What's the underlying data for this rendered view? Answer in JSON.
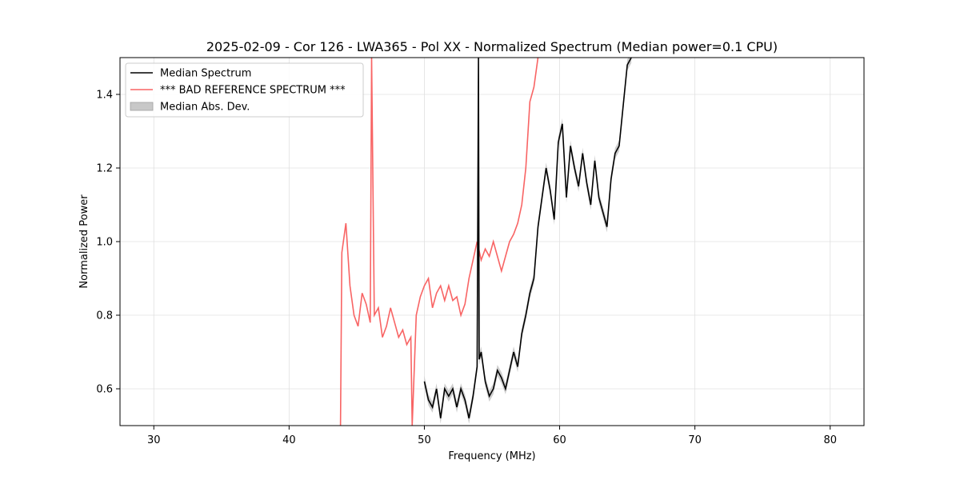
{
  "chart_data": {
    "type": "line",
    "title": "2025-02-09 - Cor 126 - LWA365 - Pol XX - Normalized Spectrum (Median power=0.1 CPU)",
    "xlabel": "Frequency (MHz)",
    "ylabel": "Normalized Power",
    "xlim": [
      27.5,
      82.5
    ],
    "ylim": [
      0.5,
      1.5
    ],
    "xticks": [
      30,
      40,
      50,
      60,
      70,
      80
    ],
    "xtick_labels": [
      "30",
      "40",
      "50",
      "60",
      "70",
      "80"
    ],
    "yticks": [
      0.6,
      0.8,
      1.0,
      1.2,
      1.4
    ],
    "ytick_labels": [
      "0.6",
      "0.8",
      "1.0",
      "1.2",
      "1.4"
    ],
    "grid": true,
    "legend_position": "top-left",
    "series": [
      {
        "name": "Median Spectrum",
        "color": "#000000",
        "x": [
          50.0,
          50.3,
          50.6,
          50.9,
          51.2,
          51.5,
          51.8,
          52.1,
          52.4,
          52.7,
          53.0,
          53.3,
          53.6,
          53.9,
          54.0,
          54.05,
          54.2,
          54.5,
          54.8,
          55.1,
          55.4,
          55.7,
          56.0,
          56.3,
          56.6,
          56.9,
          57.2,
          57.5,
          57.8,
          58.1,
          58.4,
          58.7,
          59.0,
          59.3,
          59.6,
          59.9,
          60.2,
          60.5,
          60.8,
          61.1,
          61.4,
          61.7,
          62.0,
          62.3,
          62.6,
          62.9,
          63.2,
          63.5,
          63.8,
          64.1,
          64.4,
          64.7,
          65.0,
          65.3
        ],
        "y": [
          0.62,
          0.57,
          0.55,
          0.6,
          0.52,
          0.6,
          0.58,
          0.6,
          0.55,
          0.6,
          0.57,
          0.52,
          0.58,
          0.66,
          1.5,
          0.68,
          0.7,
          0.62,
          0.58,
          0.6,
          0.65,
          0.63,
          0.6,
          0.65,
          0.7,
          0.66,
          0.75,
          0.8,
          0.86,
          0.9,
          1.04,
          1.12,
          1.2,
          1.14,
          1.06,
          1.27,
          1.32,
          1.12,
          1.26,
          1.2,
          1.15,
          1.24,
          1.16,
          1.1,
          1.22,
          1.12,
          1.08,
          1.04,
          1.17,
          1.24,
          1.26,
          1.37,
          1.48,
          1.5
        ]
      },
      {
        "name": "*** BAD REFERENCE SPECTRUM ***",
        "color": "#f86464",
        "x": [
          43.8,
          43.9,
          44.2,
          44.5,
          44.8,
          45.1,
          45.4,
          45.7,
          46.0,
          46.1,
          46.3,
          46.6,
          46.9,
          47.2,
          47.5,
          47.8,
          48.1,
          48.4,
          48.7,
          49.0,
          49.1,
          49.4,
          49.7,
          50.0,
          50.3,
          50.6,
          50.9,
          51.2,
          51.5,
          51.8,
          52.1,
          52.4,
          52.7,
          53.0,
          53.3,
          53.6,
          53.9,
          54.2,
          54.5,
          54.8,
          55.1,
          55.4,
          55.7,
          56.0,
          56.3,
          56.6,
          56.9,
          57.2,
          57.5,
          57.8,
          58.1,
          58.4
        ],
        "y": [
          0.5,
          0.97,
          1.05,
          0.88,
          0.8,
          0.77,
          0.86,
          0.83,
          0.78,
          1.5,
          0.8,
          0.82,
          0.74,
          0.77,
          0.82,
          0.78,
          0.74,
          0.76,
          0.72,
          0.74,
          0.5,
          0.8,
          0.85,
          0.88,
          0.9,
          0.82,
          0.86,
          0.88,
          0.84,
          0.88,
          0.84,
          0.85,
          0.8,
          0.83,
          0.9,
          0.95,
          1.0,
          0.95,
          0.98,
          0.96,
          1.0,
          0.96,
          0.92,
          0.96,
          1.0,
          1.02,
          1.05,
          1.1,
          1.2,
          1.38,
          1.42,
          1.5
        ]
      },
      {
        "name": "Median Abs. Dev.",
        "color": "#c8c8c8",
        "type": "band",
        "spread": 0.015
      }
    ]
  }
}
